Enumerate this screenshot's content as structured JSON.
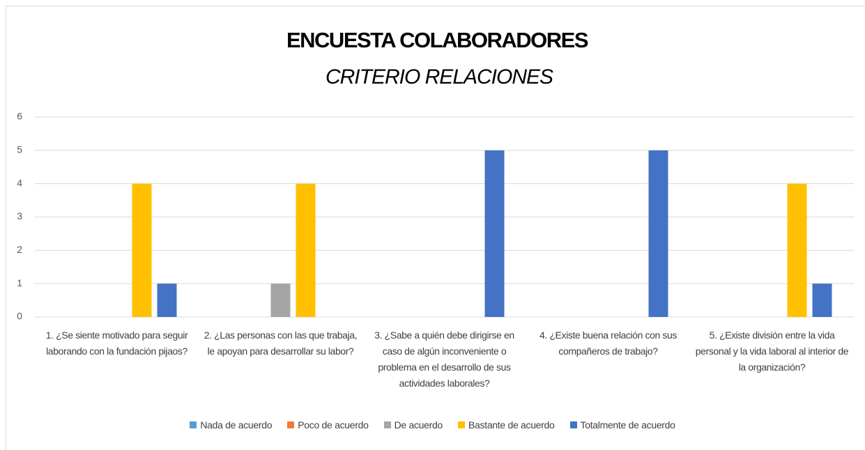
{
  "chart_data": {
    "type": "bar",
    "title": "ENCUESTA COLABORADORES",
    "subtitle": "CRITERIO RELACIONES",
    "categories": [
      "1. ¿Se siente motivado para seguir laborando con la fundación pijaos?",
      "2. ¿Las personas con las que trabaja, le apoyan para desarrollar su labor?",
      "3. ¿Sabe a quién debe dirigirse en caso de algún inconveniente o problema en el desarrollo de sus actividades laborales?",
      "4. ¿Existe buena relación con sus compañeros de trabajo?",
      "5. ¿Existe división entre la vida personal y la vida laboral al interior de la organización?"
    ],
    "series": [
      {
        "name": "Nada de acuerdo",
        "color": "#5b9bd5",
        "values": [
          0,
          0,
          0,
          0,
          0
        ]
      },
      {
        "name": "Poco de acuerdo",
        "color": "#ed7d31",
        "values": [
          0,
          0,
          0,
          0,
          0
        ]
      },
      {
        "name": "De acuerdo",
        "color": "#a5a5a5",
        "values": [
          0,
          1,
          0,
          0,
          0
        ]
      },
      {
        "name": "Bastante de acuerdo",
        "color": "#ffc000",
        "values": [
          4,
          4,
          0,
          0,
          4
        ]
      },
      {
        "name": "Totalmente de acuerdo",
        "color": "#4472c4",
        "values": [
          1,
          0,
          5,
          5,
          1
        ]
      }
    ],
    "ylim": [
      0,
      6
    ],
    "yticks": [
      0,
      1,
      2,
      3,
      4,
      5,
      6
    ],
    "grid": true,
    "legend": "bottom"
  }
}
